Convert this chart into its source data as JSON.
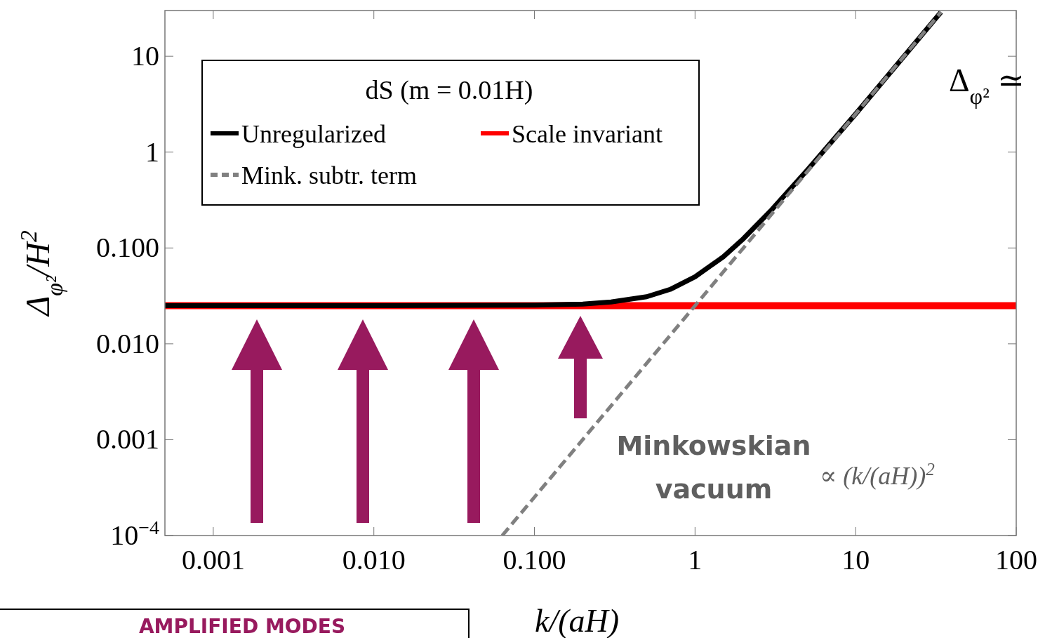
{
  "chart_data": {
    "type": "line",
    "legend_title": "dS (m = 0.01H)",
    "xlabel": "k/(aH)",
    "ylabel": "Δ$_{φ²}$/H$^{2}$",
    "log": "xy",
    "grid": false,
    "legend": "top left",
    "xlim": [
      0.0005,
      100
    ],
    "ylim": [
      0.0001,
      30
    ],
    "xticks": [
      {
        "value": 0.001,
        "label": "0.001"
      },
      {
        "value": 0.01,
        "label": "0.010"
      },
      {
        "value": 0.1,
        "label": "0.100"
      },
      1,
      10,
      100
    ],
    "yticks": [
      {
        "value": 0.0001,
        "label": "10$^{−4}$"
      },
      {
        "value": 0.001,
        "label": "0.001"
      },
      {
        "value": 0.01,
        "label": "0.010"
      },
      {
        "value": 0.1,
        "label": "0.100"
      },
      1,
      10
    ],
    "series": [
      {
        "name": "Scale invariant",
        "color": "#ff0000",
        "line_style": "solid",
        "x": [
          0.0005,
          100
        ],
        "values": [
          0.025,
          0.025
        ]
      },
      {
        "name": "Unregularized",
        "color": "#000000",
        "line_style": "solid",
        "x": [
          0.0005,
          0.01,
          0.1,
          0.2,
          0.3,
          0.5,
          0.7,
          1,
          1.5,
          2,
          3,
          5,
          10,
          20,
          34
        ],
        "values": [
          0.025,
          0.025,
          0.0253,
          0.026,
          0.0273,
          0.031,
          0.037,
          0.05,
          0.081,
          0.125,
          0.25,
          0.65,
          2.5,
          10,
          28.9
        ]
      },
      {
        "name": "Mink. subtr. term",
        "color": "#808080",
        "line_style": "dashed",
        "x": [
          0.063,
          1,
          34
        ],
        "values": [
          0.0001,
          0.025,
          28.9
        ]
      }
    ],
    "annotations": [
      "Minkowskian vacuum",
      "∝ (k/(aH))$^{2}$",
      "Δ$_{φ²}$ ≃",
      "AMPLIFIED MODES"
    ]
  }
}
